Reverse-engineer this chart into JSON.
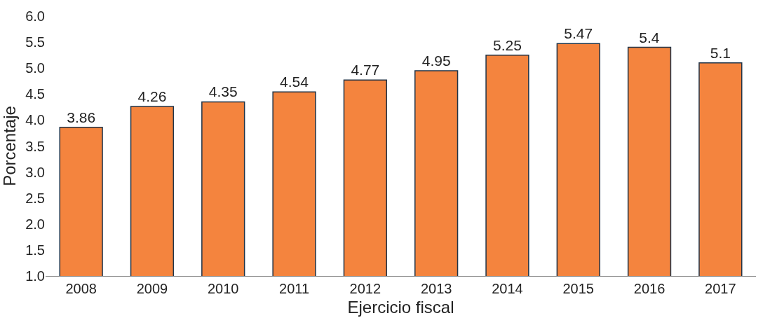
{
  "chart_data": {
    "type": "bar",
    "xlabel": "Ejercicio fiscal",
    "ylabel": "Porcentaje",
    "categories": [
      "2008",
      "2009",
      "2010",
      "2011",
      "2012",
      "2013",
      "2014",
      "2015",
      "2016",
      "2017"
    ],
    "values": [
      3.86,
      4.26,
      4.35,
      4.54,
      4.77,
      4.95,
      5.25,
      5.47,
      5.4,
      5.1
    ],
    "color": "#f4843e",
    "ylim": [
      1.0,
      6.0
    ],
    "yticks": [
      {
        "value": 1.0,
        "label": "1.0"
      },
      {
        "value": 1.5,
        "label": "1.5"
      },
      {
        "value": 2.0,
        "label": "2.0"
      },
      {
        "value": 2.5,
        "label": "2.5"
      },
      {
        "value": 3.0,
        "label": "3.0"
      },
      {
        "value": 3.5,
        "label": "3.5"
      },
      {
        "value": 4.0,
        "label": "4.0"
      },
      {
        "value": 4.5,
        "label": "4.5"
      },
      {
        "value": 5.0,
        "label": "5.0"
      },
      {
        "value": 5.5,
        "label": "5.5"
      },
      {
        "value": 6.0,
        "label": "6.0"
      }
    ],
    "data_labels": true
  }
}
